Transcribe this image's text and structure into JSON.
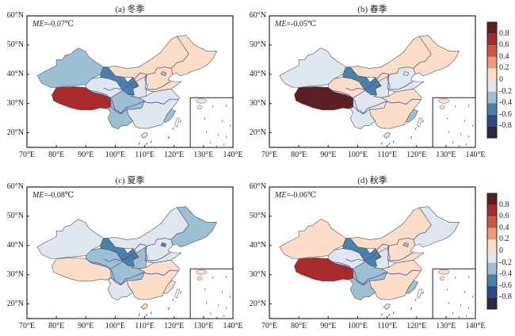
{
  "figure": {
    "panels": [
      {
        "title": "(a) 冬季",
        "me_label": "ME",
        "me_value": "=-0.07℃",
        "regions": {
          "xinjiang": "-0.4",
          "tibet": "0.8",
          "qinghai": "-0.2",
          "gansu": "-0.6",
          "ningxia": "-0.6",
          "inner_mongolia": "0.2",
          "northeast": "0.2",
          "north_china": "0.2",
          "sichuan": "-0.4",
          "yunnan": "-0.4",
          "south_central": "-0.2",
          "fujian": "-0.4",
          "beijing": "-0.4",
          "shaanxi": "-0.2",
          "hainan": "-0.2"
        }
      },
      {
        "title": "(b) 春季",
        "me_label": "ME",
        "me_value": "=-0.05℃",
        "regions": {
          "xinjiang": "-0.2",
          "tibet": "1.0",
          "qinghai": "0.2",
          "gansu": "-0.6",
          "ningxia": "-0.6",
          "inner_mongolia": "0.2",
          "northeast": "0.2",
          "north_china": "-0.2",
          "sichuan": "-0.2",
          "yunnan": "-0.2",
          "south_central": "0.2",
          "fujian": "-0.4",
          "beijing": "-0.2",
          "shaanxi": "-0.2",
          "hainan": "-0.2"
        }
      },
      {
        "title": "(c) 夏季",
        "me_label": "ME",
        "me_value": "=-0.08℃",
        "regions": {
          "xinjiang": "-0.2",
          "tibet": "0.2",
          "qinghai": "-0.4",
          "gansu": "-0.6",
          "ningxia": "-0.6",
          "inner_mongolia": "-0.2",
          "northeast": "-0.4",
          "north_china": "-0.2",
          "sichuan": "-0.4",
          "yunnan": "-0.2",
          "south_central": "0.2",
          "fujian": "0.2",
          "beijing": "-0.6",
          "shaanxi": "-0.4",
          "hainan": "0.2"
        }
      },
      {
        "title": "(d) 秋季",
        "me_label": "ME",
        "me_value": "=-0.06℃",
        "regions": {
          "xinjiang": "0.2",
          "tibet": "0.8",
          "qinghai": "-0.2",
          "gansu": "-0.6",
          "ningxia": "-0.6",
          "inner_mongolia": "0.2",
          "northeast": "-0.2",
          "north_china": "0.2",
          "sichuan": "-0.4",
          "yunnan": "-0.4",
          "south_central": "0.2",
          "fujian": "-0.4",
          "beijing": "-0.4",
          "shaanxi": "-0.2",
          "hainan": "-0.2"
        }
      }
    ],
    "x_ticks": [
      "70°E",
      "80°E",
      "90°E",
      "100°E",
      "110°E",
      "120°E",
      "130°E",
      "140°E"
    ],
    "y_ticks": [
      "60°N",
      "50°N",
      "40°N",
      "30°N",
      "20°N"
    ],
    "x_range": [
      70,
      140
    ],
    "y_range": [
      15,
      60
    ],
    "colorbar": {
      "labels": [
        "0.8",
        "0.6",
        "0.4",
        "0.2",
        "0",
        "-0.2",
        "-0.4",
        "-0.6",
        "-0.8"
      ],
      "bins": [
        {
          "key": "1.0",
          "color": "#5c1f24"
        },
        {
          "key": "0.8",
          "color": "#a72b2b"
        },
        {
          "key": "0.6",
          "color": "#cf5545"
        },
        {
          "key": "0.4",
          "color": "#ec9a78"
        },
        {
          "key": "0.2",
          "color": "#fcddc7"
        },
        {
          "key": "-0.2",
          "color": "#dfe6ef"
        },
        {
          "key": "-0.4",
          "color": "#9dbfd3"
        },
        {
          "key": "-0.6",
          "color": "#4a80ad"
        },
        {
          "key": "-0.8",
          "color": "#2d4a8a"
        },
        {
          "key": "-1.0",
          "color": "#2f2547"
        }
      ]
    }
  }
}
